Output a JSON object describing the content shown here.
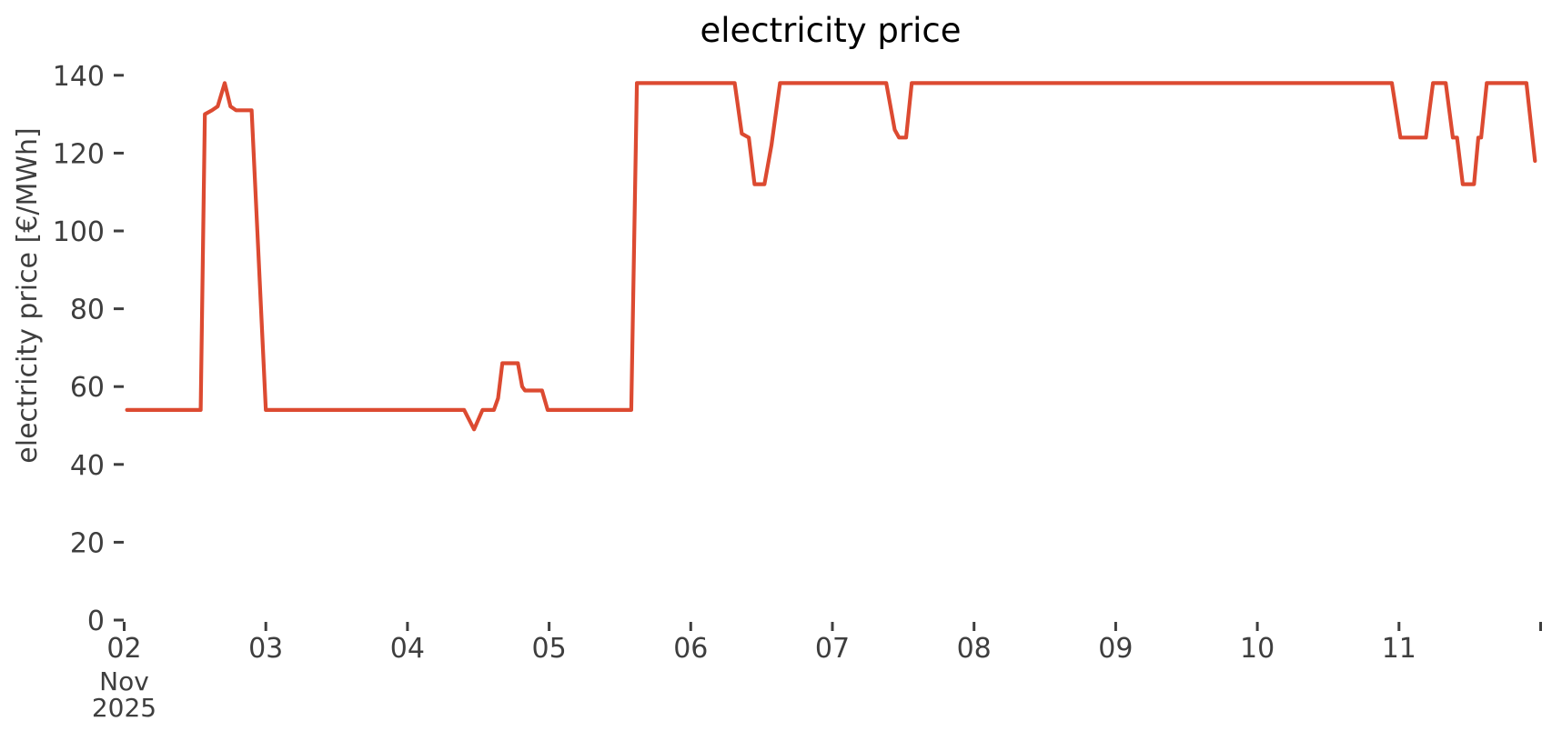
{
  "chart_data": {
    "type": "line",
    "title": "electricity price",
    "xlabel": "",
    "ylabel": "electricity price [€/MWh]",
    "x_axis": {
      "tick_days": [
        2,
        3,
        4,
        5,
        6,
        7,
        8,
        9,
        10,
        11
      ],
      "tick_labels": [
        "02",
        "03",
        "04",
        "05",
        "06",
        "07",
        "08",
        "09",
        "10",
        "11"
      ],
      "edge_tick_day": 12,
      "first_tick_sub_labels": [
        "Nov",
        "2025"
      ],
      "xlim_days": [
        2.0,
        12.05
      ]
    },
    "y_axis": {
      "ticks": [
        0,
        20,
        40,
        60,
        80,
        100,
        120,
        140
      ],
      "tick_labels": [
        "0",
        "20",
        "40",
        "60",
        "80",
        "100",
        "120",
        "140"
      ],
      "ylim": [
        0,
        145.5
      ]
    },
    "grid": "off",
    "legend": "none",
    "colors": {
      "line": "#dc4a31",
      "tick_text": "#3e3e3e",
      "title_text": "#000000"
    },
    "series": [
      {
        "name": "electricity price [€/MWh]",
        "points_day_value": [
          [
            2.02,
            54
          ],
          [
            2.54,
            54
          ],
          [
            2.57,
            130
          ],
          [
            2.62,
            131
          ],
          [
            2.66,
            132
          ],
          [
            2.71,
            138
          ],
          [
            2.75,
            132
          ],
          [
            2.79,
            131
          ],
          [
            2.9,
            131
          ],
          [
            3.0,
            54
          ],
          [
            4.4,
            54
          ],
          [
            4.47,
            49
          ],
          [
            4.53,
            54
          ],
          [
            4.61,
            54
          ],
          [
            4.64,
            57
          ],
          [
            4.67,
            66
          ],
          [
            4.78,
            66
          ],
          [
            4.81,
            60
          ],
          [
            4.83,
            59
          ],
          [
            4.95,
            59
          ],
          [
            4.99,
            54
          ],
          [
            5.58,
            54
          ],
          [
            5.62,
            138
          ],
          [
            6.31,
            138
          ],
          [
            6.36,
            125
          ],
          [
            6.41,
            124
          ],
          [
            6.45,
            112
          ],
          [
            6.52,
            112
          ],
          [
            6.57,
            122
          ],
          [
            6.63,
            138
          ],
          [
            7.38,
            138
          ],
          [
            7.44,
            126
          ],
          [
            7.47,
            124
          ],
          [
            7.52,
            124
          ],
          [
            7.56,
            138
          ],
          [
            10.95,
            138
          ],
          [
            11.01,
            124
          ],
          [
            11.19,
            124
          ],
          [
            11.24,
            138
          ],
          [
            11.33,
            138
          ],
          [
            11.38,
            124
          ],
          [
            11.41,
            124
          ],
          [
            11.45,
            112
          ],
          [
            11.53,
            112
          ],
          [
            11.56,
            124
          ],
          [
            11.58,
            124
          ],
          [
            11.62,
            138
          ],
          [
            11.9,
            138
          ],
          [
            11.96,
            118
          ]
        ]
      }
    ]
  }
}
